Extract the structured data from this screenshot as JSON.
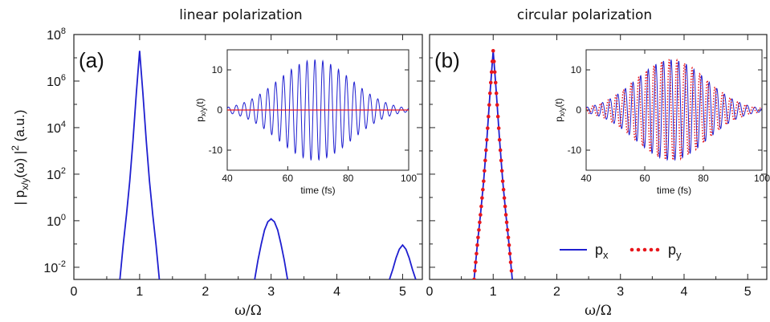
{
  "colors": {
    "px": "#1f1fd0",
    "py": "#e8161b",
    "axis": "#222222"
  },
  "chart_data": [
    {
      "id": "a",
      "type": "line",
      "title": "linear polarization",
      "panel_label": "(a)",
      "xlabel": "ω/Ω",
      "ylabel_parts": [
        "| p",
        "x/y",
        "(ω) |",
        "2",
        "  (a.u.)"
      ],
      "yscale": "log",
      "xlim": [
        0,
        5.3
      ],
      "ylim": [
        0.003,
        100000000
      ],
      "xticks": [
        0,
        1,
        2,
        3,
        4,
        5
      ],
      "yticks": [
        {
          "base": "10",
          "exp": "8",
          "value": 100000000
        },
        {
          "base": "10",
          "exp": "6",
          "value": 1000000
        },
        {
          "base": "10",
          "exp": "4",
          "value": 10000
        },
        {
          "base": "10",
          "exp": "2",
          "value": 100
        },
        {
          "base": "10",
          "exp": "0",
          "value": 1
        },
        {
          "base": "10",
          "exp": "-2",
          "value": 0.01
        }
      ],
      "series": [
        {
          "x": [
            0.7,
            0.75,
            0.8,
            0.85,
            0.9,
            0.95,
            1.0,
            1.05,
            1.1,
            1.15,
            1.2,
            1.25,
            1.3
          ],
          "y": [
            0.003,
            0.09,
            1.8,
            50,
            3000,
            300000,
            20000000,
            300000,
            3000,
            50,
            1.8,
            0.09,
            0.003
          ]
        },
        {
          "x": [
            2.75,
            2.8,
            2.85,
            2.9,
            2.95,
            3.0,
            3.05,
            3.1,
            3.15,
            3.2,
            3.25
          ],
          "y": [
            0.003,
            0.02,
            0.1,
            0.4,
            0.9,
            1.2,
            0.9,
            0.4,
            0.1,
            0.02,
            0.003
          ]
        },
        {
          "x": [
            4.8,
            4.85,
            4.9,
            4.95,
            5.0,
            5.05,
            5.1,
            5.15,
            5.2
          ],
          "y": [
            0.003,
            0.008,
            0.025,
            0.06,
            0.09,
            0.06,
            0.025,
            0.008,
            0.003
          ]
        }
      ],
      "inset": {
        "xlabel": "time (fs)",
        "ylabel": "p",
        "ylabel_sub": "x/y",
        "ylabel_tail": "(t)",
        "xlim": [
          40,
          100
        ],
        "ylim": [
          -15,
          15
        ],
        "xticks": [
          40,
          60,
          80,
          100
        ],
        "yticks": [
          10,
          0,
          -10
        ],
        "envelope": {
          "center_fs": 69,
          "sigma_fs": 12,
          "amplitude": 12.5,
          "period_fs": 2.6
        },
        "series": [
          {
            "name": "p_x",
            "style": "solid",
            "phase": 0
          },
          {
            "name": "p_y",
            "style": "flat",
            "phase": 0
          }
        ]
      }
    },
    {
      "id": "b",
      "type": "line",
      "title": "circular polarization",
      "panel_label": "(b)",
      "xlabel": "ω/Ω",
      "yscale": "log",
      "xlim": [
        0,
        5.3
      ],
      "ylim": [
        0.003,
        100000000
      ],
      "xticks": [
        0,
        1,
        2,
        3,
        4,
        5
      ],
      "series": [
        {
          "x": [
            0.7,
            0.75,
            0.8,
            0.85,
            0.9,
            0.95,
            1.0,
            1.05,
            1.1,
            1.15,
            1.2,
            1.25,
            1.3
          ],
          "y": [
            0.003,
            0.09,
            1.8,
            50,
            3000,
            300000,
            20000000,
            300000,
            3000,
            50,
            1.8,
            0.09,
            0.003
          ]
        }
      ],
      "inset": {
        "xlabel": "time (fs)",
        "ylabel": "p",
        "ylabel_sub": "x/y",
        "ylabel_tail": "(t)",
        "xlim": [
          40,
          100
        ],
        "ylim": [
          -15,
          15
        ],
        "xticks": [
          40,
          60,
          80,
          100
        ],
        "yticks": [
          10,
          0,
          -10
        ],
        "envelope": {
          "center_fs": 69,
          "sigma_fs": 12,
          "amplitude": 12.5,
          "period_fs": 2.6
        },
        "series": [
          {
            "name": "p_x",
            "style": "solid",
            "phase": 0
          },
          {
            "name": "p_y",
            "style": "dotted",
            "phase": 1.5708
          }
        ]
      },
      "legend": [
        {
          "base": "p",
          "sub": "x",
          "style": "solid"
        },
        {
          "base": "p",
          "sub": "y",
          "style": "dotted"
        }
      ]
    }
  ]
}
